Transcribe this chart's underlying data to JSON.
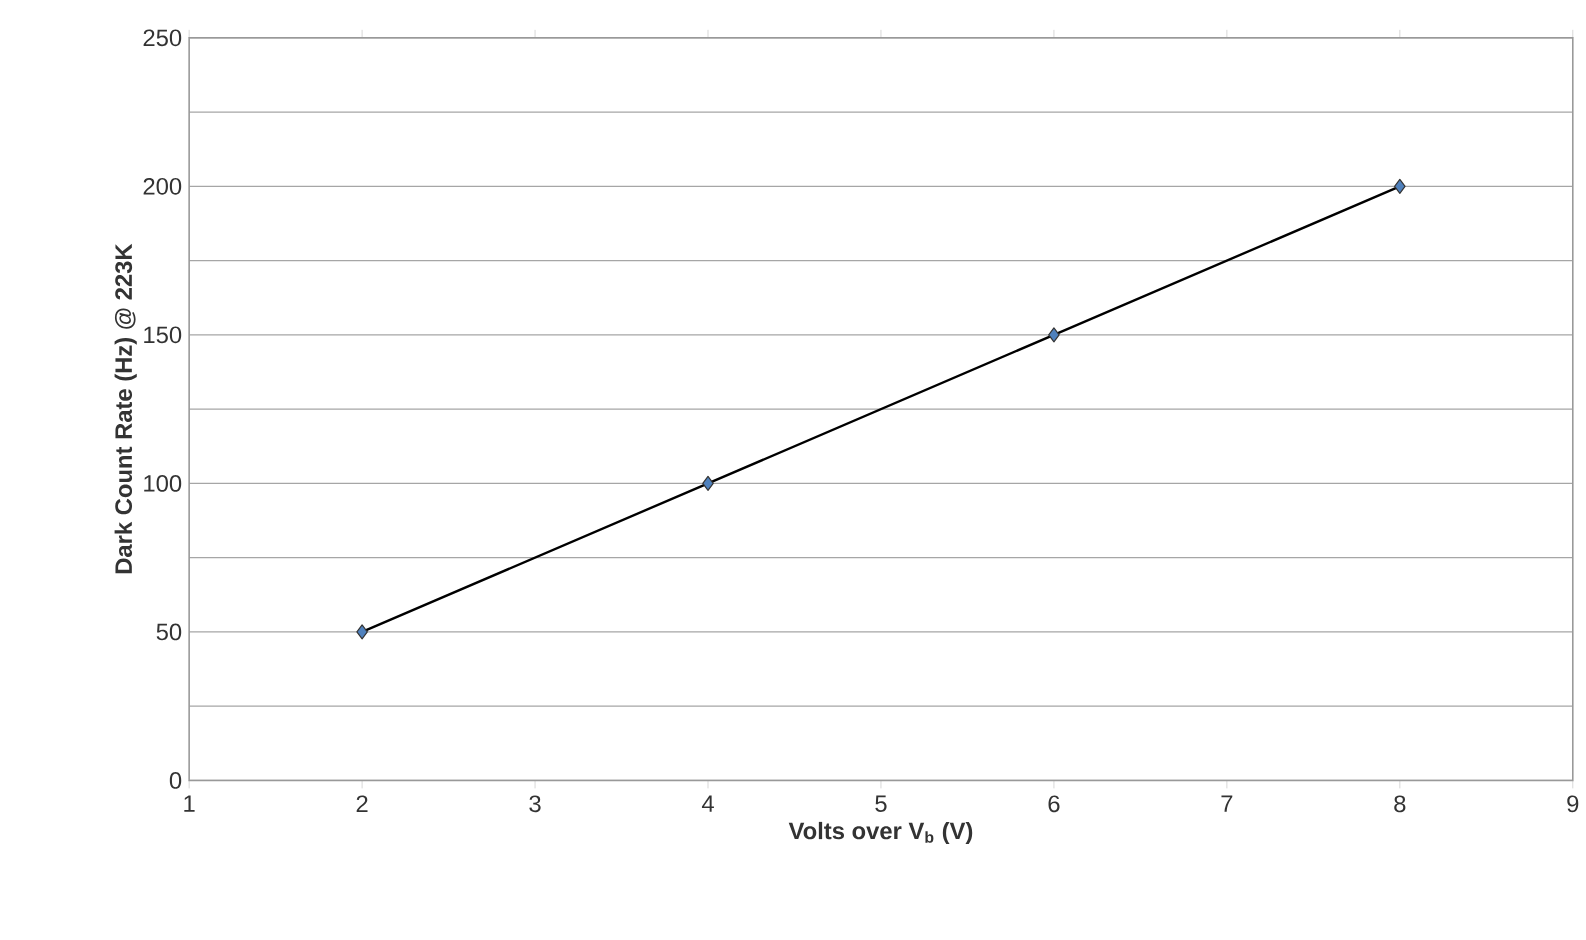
{
  "chart_data": {
    "type": "line",
    "xlabel": "Volts over V$_{b}$ (V)",
    "ylabel": "Dark Count Rate (Hz) @ 223K",
    "x": [
      2,
      4,
      6,
      8
    ],
    "values": [
      50,
      100,
      150,
      200
    ],
    "color": "#4f81bd",
    "xlim": [
      1,
      9
    ],
    "xticks": [
      1,
      2,
      3,
      4,
      5,
      6,
      7,
      8,
      9
    ],
    "ylim": [
      0,
      250
    ],
    "yticks": [
      0,
      {
        "value": 25,
        "label": null
      },
      50,
      {
        "value": 75,
        "label": null
      },
      100,
      {
        "value": 125,
        "label": null
      },
      150,
      {
        "value": 175,
        "label": null
      },
      200,
      {
        "value": 225,
        "label": null
      },
      250
    ],
    "grid": "y",
    "marker": "diamond",
    "line_style": "solid"
  }
}
